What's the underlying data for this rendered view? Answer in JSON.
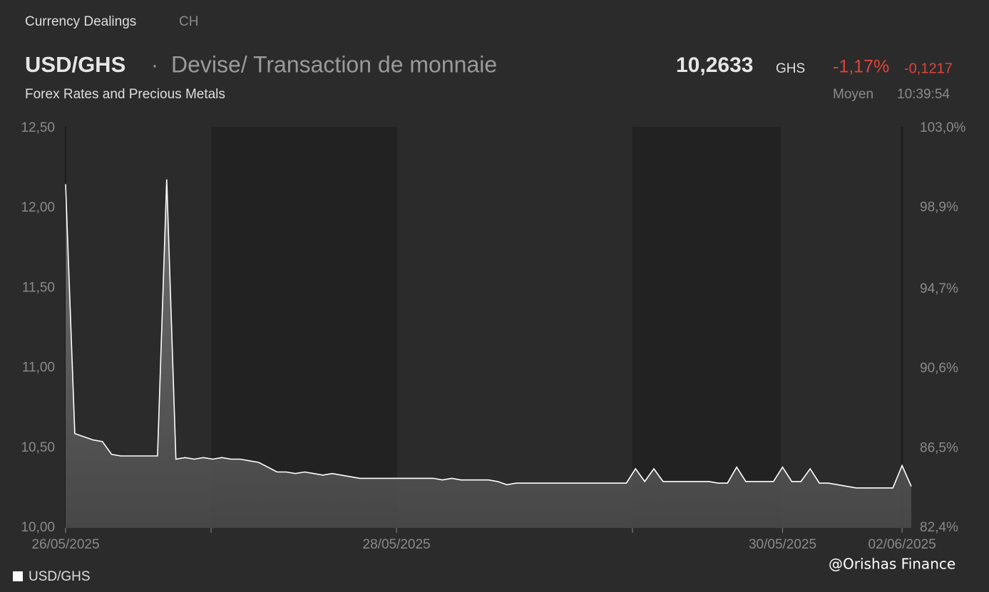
{
  "header": {
    "section": "Currency Dealings",
    "region": "CH",
    "symbol": "USD/GHS",
    "separator": "·",
    "description": "Devise/ Transaction de monnaie",
    "subtitle": "Forex Rates and Precious Metals",
    "price": "10,2633",
    "currency": "GHS",
    "change_pct": "-1,17%",
    "change_abs": "-0,1217",
    "price_type": "Moyen",
    "time": "10:39:54"
  },
  "watermark": "@Orishas Finance",
  "chart_data": {
    "type": "area",
    "categories": [
      "26/05/2025",
      null,
      null,
      null,
      null,
      null,
      null,
      null,
      null,
      null,
      null,
      null,
      null,
      null,
      null,
      null,
      null,
      null,
      null,
      null,
      null,
      null,
      null,
      null,
      null,
      null,
      null,
      null,
      null,
      null,
      null,
      null,
      null,
      null,
      null,
      null,
      "28/05/2025",
      null,
      null,
      null,
      null,
      null,
      null,
      null,
      null,
      null,
      null,
      null,
      null,
      null,
      null,
      null,
      null,
      null,
      null,
      null,
      null,
      null,
      null,
      null,
      null,
      null,
      null,
      null,
      null,
      null,
      null,
      null,
      null,
      null,
      null,
      null,
      null,
      null,
      null,
      null,
      null,
      null,
      "30/05/2025",
      null,
      null,
      null,
      null,
      null,
      null,
      null,
      null,
      null,
      null,
      null,
      null,
      "02/06/2025",
      null
    ],
    "series": [
      {
        "name": "USD/GHS",
        "color": "#ffffff",
        "values": [
          12.15,
          10.59,
          10.57,
          10.55,
          10.54,
          10.46,
          10.45,
          10.45,
          10.45,
          10.45,
          10.45,
          12.18,
          10.43,
          10.44,
          10.43,
          10.44,
          10.43,
          10.44,
          10.43,
          10.43,
          10.42,
          10.41,
          10.38,
          10.35,
          10.35,
          10.34,
          10.35,
          10.34,
          10.33,
          10.34,
          10.33,
          10.32,
          10.31,
          10.31,
          10.31,
          10.31,
          10.31,
          10.31,
          10.31,
          10.31,
          10.31,
          10.3,
          10.31,
          10.3,
          10.3,
          10.3,
          10.3,
          10.29,
          10.27,
          10.28,
          10.28,
          10.28,
          10.28,
          10.28,
          10.28,
          10.28,
          10.28,
          10.28,
          10.28,
          10.28,
          10.28,
          10.28,
          10.37,
          10.29,
          10.37,
          10.29,
          10.29,
          10.29,
          10.29,
          10.29,
          10.29,
          10.28,
          10.28,
          10.38,
          10.29,
          10.29,
          10.29,
          10.29,
          10.38,
          10.29,
          10.29,
          10.37,
          10.28,
          10.28,
          10.27,
          10.26,
          10.25,
          10.25,
          10.25,
          10.25,
          10.25,
          10.39,
          10.26
        ]
      }
    ],
    "ylim": [
      10.0,
      12.5
    ],
    "yticks": [
      {
        "value": 10.0,
        "label": "10,00"
      },
      {
        "value": 10.5,
        "label": "10,50"
      },
      {
        "value": 11.0,
        "label": "11,00"
      },
      {
        "value": 11.5,
        "label": "11,50"
      },
      {
        "value": 12.0,
        "label": "12,00"
      },
      {
        "value": 12.5,
        "label": "12,50"
      }
    ],
    "y2lim": [
      82.4,
      103.0
    ],
    "y2ticks": [
      {
        "value": 82.4,
        "label": "82,4%"
      },
      {
        "value": 86.5,
        "label": "86,5%"
      },
      {
        "value": 90.6,
        "label": "90,6%"
      },
      {
        "value": 94.7,
        "label": "94,7%"
      },
      {
        "value": 98.9,
        "label": "98,9%"
      },
      {
        "value": 103.0,
        "label": "103,0%"
      }
    ],
    "legend": "bottom-left"
  }
}
